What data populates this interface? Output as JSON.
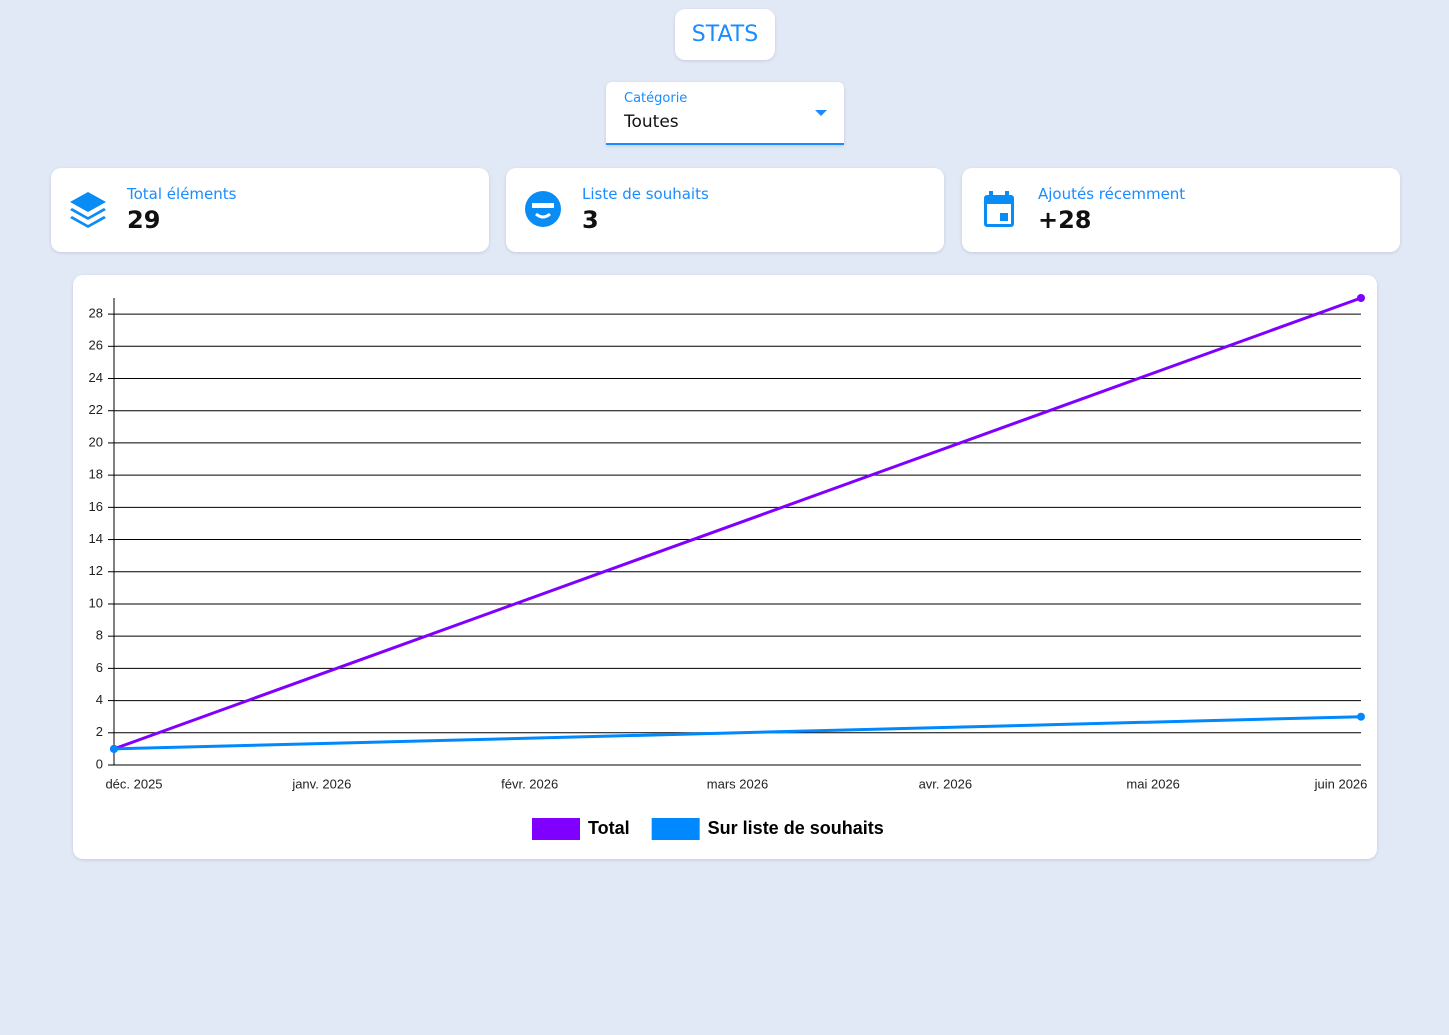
{
  "header": {
    "title": "STATS"
  },
  "select": {
    "label": "Catégorie",
    "value": "Toutes"
  },
  "stats": [
    {
      "label": "Total éléments",
      "value": "29"
    },
    {
      "label": "Liste de souhaits",
      "value": "3"
    },
    {
      "label": "Ajoutés récemment",
      "value": "+28"
    }
  ],
  "chart_data": {
    "type": "line",
    "x": [
      "déc. 2025",
      "juin 2026"
    ],
    "xticks": [
      "déc. 2025",
      "janv. 2026",
      "févr. 2026",
      "mars 2026",
      "avr. 2026",
      "mai 2026",
      "juin 2026"
    ],
    "series": [
      {
        "name": "Total",
        "color": "#7f00ff",
        "values": [
          1,
          29
        ]
      },
      {
        "name": "Sur liste de souhaits",
        "color": "#0088ff",
        "values": [
          1,
          3
        ]
      }
    ],
    "ylim": [
      0,
      29
    ],
    "yticks": [
      0,
      2,
      4,
      6,
      8,
      10,
      12,
      14,
      16,
      18,
      20,
      22,
      24,
      26,
      28
    ],
    "grid": true,
    "legend": "bottom"
  }
}
